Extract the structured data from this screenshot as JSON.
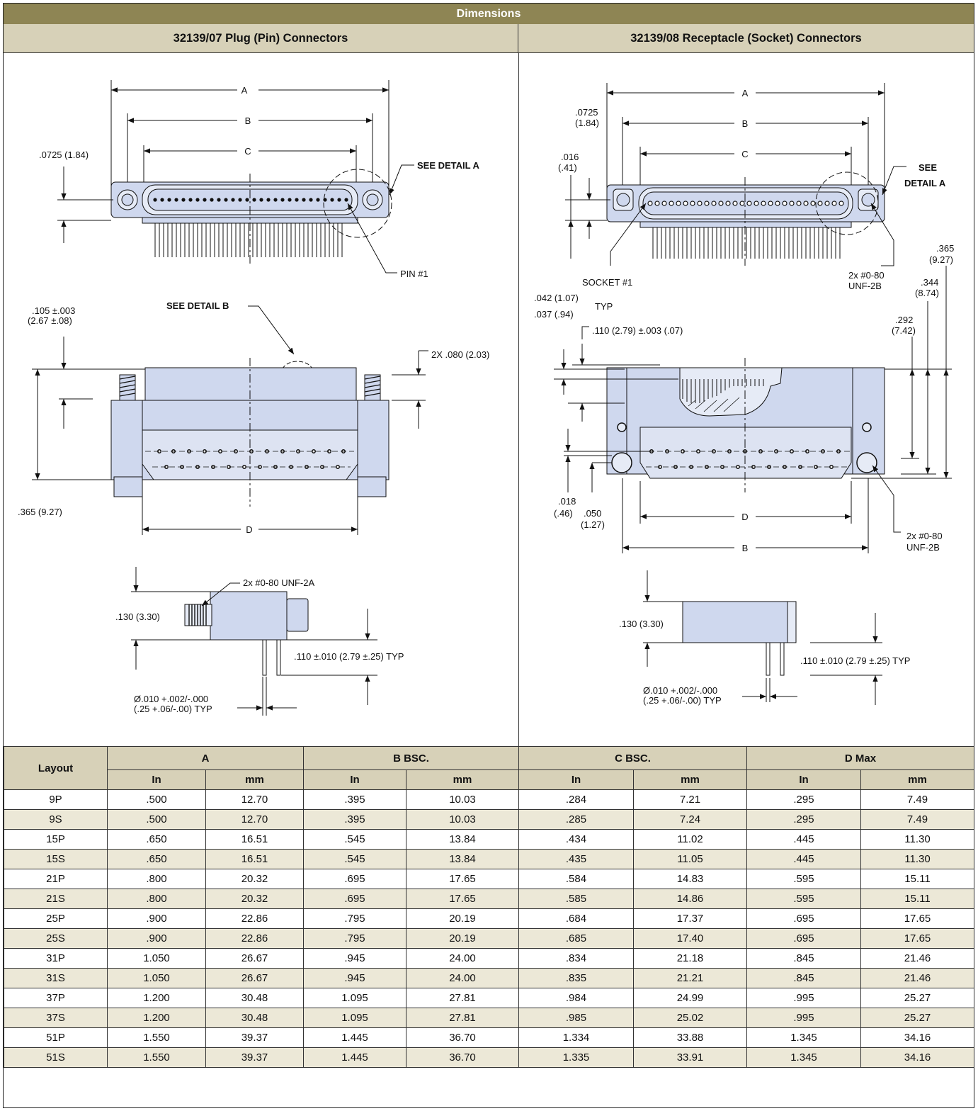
{
  "header": {
    "title": "Dimensions",
    "left_title": "32139/07 Plug (Pin) Connectors",
    "right_title": "32139/08 Receptacle (Socket) Connectors"
  },
  "plug_drawing": {
    "dim_a": "A",
    "dim_b": "B",
    "dim_c": "C",
    "dim_d": "D",
    "offset": ".0725 (1.84)",
    "see_detail_a": "SEE DETAIL A",
    "pin1": "PIN #1",
    "see_detail_b": "SEE DETAIL  B",
    "tol1_l1": ".105 ±.003",
    "tol1_l2": "(2.67 ±.08)",
    "twox": "2X .080 (2.03)",
    "height": ".365 (9.27)",
    "thread": "2x #0-80 UNF-2A",
    "body_h": ".130 (3.30)",
    "tail": ".110 ±.010 (2.79 ±.25) TYP",
    "dia_l1": "Ø.010 +.002/-.000",
    "dia_l2": "(.25 +.06/-.00) TYP"
  },
  "receptacle_drawing": {
    "dim_a": "A",
    "dim_b": "B",
    "dim_c": "C",
    "dim_d": "D",
    "dim_b2": "B",
    "off_l1": ".0725",
    "off_l2": "(1.84)",
    "off2_l1": ".016",
    "off2_l2": "(.41)",
    "see_l1": "SEE",
    "see_l2": "DETAIL  A",
    "socket1": "SOCKET #1",
    "thread_l1": "2x #0-80",
    "thread_l2": "UNF-2B",
    "h365_l1": ".365",
    "h365_l2": "(9.27)",
    "h344_l1": ".344",
    "h344_l2": "(8.74)",
    "h292_l1": ".292",
    "h292_l2": "(7.42)",
    "t042": ".042 (1.07)",
    "t037": ".037 (.94)",
    "typ": "TYP",
    "t110": ".110 (2.79) ±.003 (.07)",
    "t018_l1": ".018",
    "t018_l2": "(.46)",
    "t050_l1": ".050",
    "t050_l2": "(1.27)",
    "thread2_l1": "2x #0-80",
    "thread2_l2": "UNF-2B",
    "body_h": ".130 (3.30)",
    "tail": ".110 ±.010 (2.79 ±.25) TYP",
    "dia_l1": "Ø.010 +.002/-.000",
    "dia_l2": "(.25 +.06/-.00) TYP"
  },
  "table": {
    "layout_label": "Layout",
    "groups": [
      "A",
      "B BSC.",
      "C BSC.",
      "D Max"
    ],
    "units": [
      "In",
      "mm",
      "In",
      "mm",
      "In",
      "mm",
      "In",
      "mm"
    ],
    "rows": [
      [
        "9P",
        ".500",
        "12.70",
        ".395",
        "10.03",
        ".284",
        "7.21",
        ".295",
        "7.49"
      ],
      [
        "9S",
        ".500",
        "12.70",
        ".395",
        "10.03",
        ".285",
        "7.24",
        ".295",
        "7.49"
      ],
      [
        "15P",
        ".650",
        "16.51",
        ".545",
        "13.84",
        ".434",
        "11.02",
        ".445",
        "11.30"
      ],
      [
        "15S",
        ".650",
        "16.51",
        ".545",
        "13.84",
        ".435",
        "11.05",
        ".445",
        "11.30"
      ],
      [
        "21P",
        ".800",
        "20.32",
        ".695",
        "17.65",
        ".584",
        "14.83",
        ".595",
        "15.11"
      ],
      [
        "21S",
        ".800",
        "20.32",
        ".695",
        "17.65",
        ".585",
        "14.86",
        ".595",
        "15.11"
      ],
      [
        "25P",
        ".900",
        "22.86",
        ".795",
        "20.19",
        ".684",
        "17.37",
        ".695",
        "17.65"
      ],
      [
        "25S",
        ".900",
        "22.86",
        ".795",
        "20.19",
        ".685",
        "17.40",
        ".695",
        "17.65"
      ],
      [
        "31P",
        "1.050",
        "26.67",
        ".945",
        "24.00",
        ".834",
        "21.18",
        ".845",
        "21.46"
      ],
      [
        "31S",
        "1.050",
        "26.67",
        ".945",
        "24.00",
        ".835",
        "21.21",
        ".845",
        "21.46"
      ],
      [
        "37P",
        "1.200",
        "30.48",
        "1.095",
        "27.81",
        ".984",
        "24.99",
        ".995",
        "25.27"
      ],
      [
        "37S",
        "1.200",
        "30.48",
        "1.095",
        "27.81",
        ".985",
        "25.02",
        ".995",
        "25.27"
      ],
      [
        "51P",
        "1.550",
        "39.37",
        "1.445",
        "36.70",
        "1.334",
        "33.88",
        "1.345",
        "34.16"
      ],
      [
        "51S",
        "1.550",
        "39.37",
        "1.445",
        "36.70",
        "1.335",
        "33.91",
        "1.345",
        "34.16"
      ]
    ]
  },
  "colors": {
    "title_bar": "#8e8554",
    "header_fill": "#d7d1b8",
    "alt_row": "#ece8d7",
    "part_fill": "#cfd8ee"
  }
}
